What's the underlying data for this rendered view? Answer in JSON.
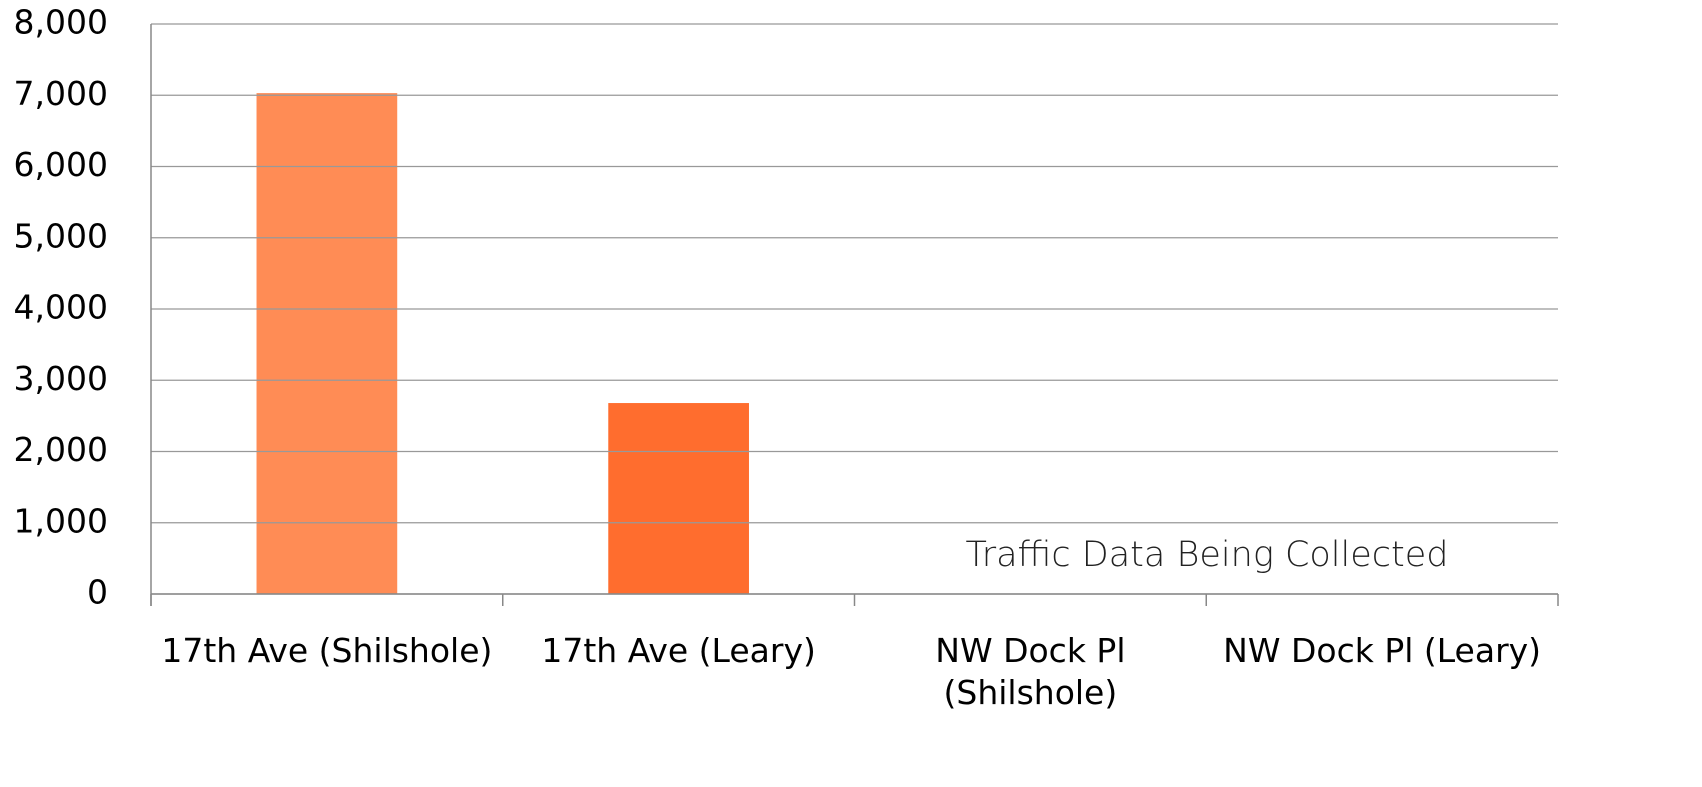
{
  "chart_data": {
    "type": "bar",
    "categories": [
      "17th Ave (Shilshole)",
      "17th Ave (Leary)",
      "NW Dock Pl (Shilshole)",
      "NW Dock Pl (Leary)"
    ],
    "values": [
      7030,
      2680,
      null,
      null
    ],
    "colors": [
      "#ff8c55",
      "#ff6d2e",
      null,
      null
    ],
    "ylim": [
      0,
      8000
    ],
    "yticks": [
      0,
      {
        "value": 1000,
        "label": "1,000"
      },
      {
        "value": 2000,
        "label": "2,000"
      },
      {
        "value": 3000,
        "label": "3,000"
      },
      {
        "value": 4000,
        "label": "4,000"
      },
      {
        "value": 5000,
        "label": "5,000"
      },
      {
        "value": 6000,
        "label": "6,000"
      },
      {
        "value": 7000,
        "label": "7,000"
      },
      {
        "value": 8000,
        "label": "8,000"
      }
    ],
    "grid": true,
    "annotation": "Traffic Data Being Collected"
  }
}
